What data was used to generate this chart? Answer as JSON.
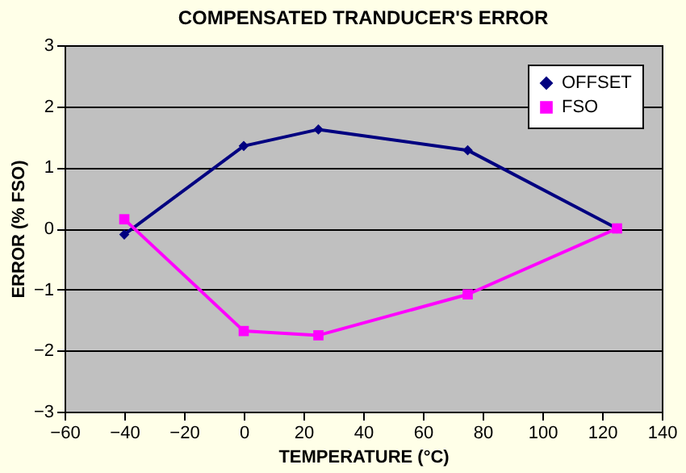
{
  "chart_data": {
    "type": "line",
    "title": "COMPENSATED TRANDUCER'S ERROR",
    "xlabel": "TEMPERATURE (°C)",
    "ylabel": "ERROR (% FSO)",
    "x": [
      -40,
      0,
      25,
      75,
      125
    ],
    "series": [
      {
        "name": "OFFSET",
        "color": "#000080",
        "marker": "diamond",
        "values": [
          -0.1,
          1.35,
          1.62,
          1.28,
          0
        ]
      },
      {
        "name": "FSO",
        "color": "#ff00ff",
        "marker": "square",
        "values": [
          0.15,
          -1.68,
          -1.75,
          -1.08,
          0
        ]
      }
    ],
    "xlim": [
      -60,
      140
    ],
    "xticks": [
      -60,
      -40,
      -20,
      0,
      20,
      40,
      60,
      80,
      100,
      120,
      140
    ],
    "ylim": [
      -3,
      3
    ],
    "yticks": [
      -3,
      -2,
      -1,
      0,
      1,
      2,
      3
    ],
    "grid": "y",
    "legend": "top right",
    "line_style": "solid"
  }
}
